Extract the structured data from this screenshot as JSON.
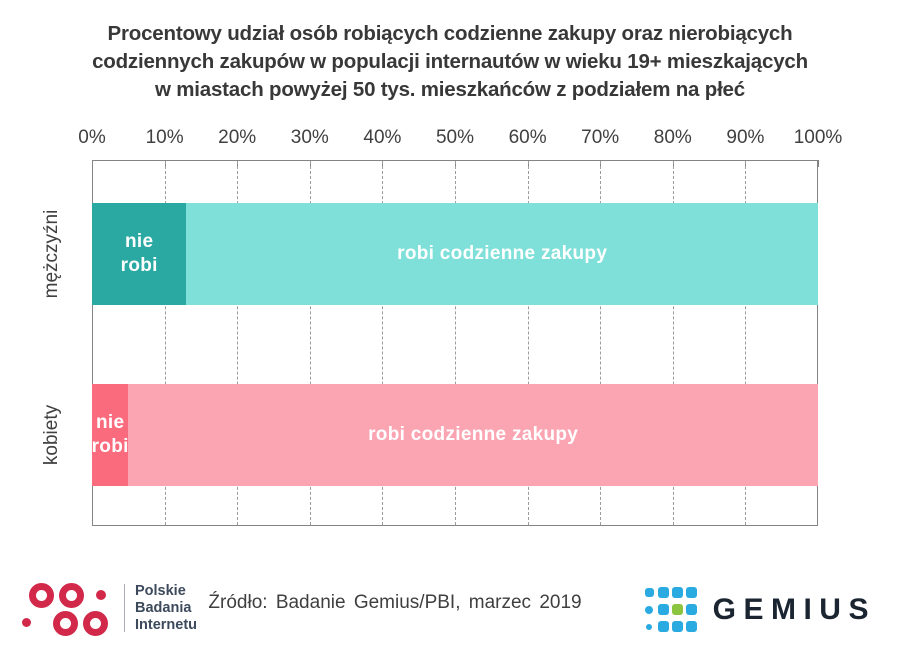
{
  "title": {
    "lines": [
      "Procentowy udział osób robiących codzienne zakupy oraz nierobiących",
      "codziennych zakupów w populacji internautów w wieku 19+ mieszkających",
      "w miastach powyżej 50 tys. mieszkańców z podziałem na płeć"
    ]
  },
  "chart_data": {
    "type": "bar",
    "orientation": "horizontal",
    "stacked": true,
    "unit": "%",
    "xlim": [
      0,
      100
    ],
    "x_ticks": [
      "0%",
      "10%",
      "20%",
      "30%",
      "40%",
      "50%",
      "60%",
      "70%",
      "80%",
      "90%",
      "100%"
    ],
    "grid": "vertical-dashed",
    "legend": "labels-inside-bars",
    "categories": [
      "mężczyźni",
      "kobiety"
    ],
    "series": [
      {
        "name": "nie robi",
        "label_display": "nie\nrobi",
        "values": [
          13,
          5
        ],
        "colors": [
          "#2aa9a2",
          "#fb6b7e"
        ]
      },
      {
        "name": "robi codzienne zakupy",
        "values": [
          87,
          95
        ],
        "colors": [
          "#7fe0da",
          "#fca5b2"
        ]
      }
    ]
  },
  "footer": {
    "pbi_logo": {
      "lines": [
        "Polskie",
        "Badania",
        "Internetu"
      ],
      "dot_color": "#d2294b",
      "text_color": "#3d4a5c"
    },
    "source_text": "Źródło: Badanie Gemius/PBI, marzec 2019",
    "gemius_logo": {
      "text": "GEMIUS",
      "blue": "#29abe2",
      "green": "#8bc540",
      "text_color": "#1b2531"
    }
  }
}
